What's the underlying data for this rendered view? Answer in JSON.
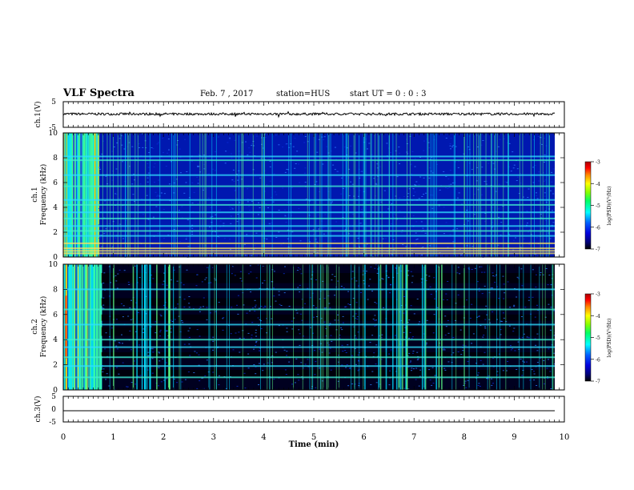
{
  "header": {
    "title": "VLF Spectra",
    "date": "Feb. 7 , 2017",
    "station": "station=HUS",
    "start_ut": "start UT =  0 : 0  : 3"
  },
  "colors": {
    "spectrogram_scale": [
      "#000000",
      "#00007a",
      "#0000dd",
      "#0060ff",
      "#00ffff",
      "#00ff66",
      "#88ff00",
      "#ffff00",
      "#ff8800",
      "#ff0000",
      "#aa0000"
    ]
  },
  "chart_data": [
    {
      "type": "line",
      "panel": "ch1 waveform",
      "ylabel": "ch.1(V)",
      "ylim": [
        -5,
        5
      ],
      "yticks": [
        "5",
        "-5"
      ],
      "xlim": [
        0,
        10
      ],
      "series": [
        {
          "description_value": "noisy trace near 0",
          "level": 0.2
        }
      ]
    },
    {
      "type": "heatmap",
      "panel": "ch1 spectrogram",
      "ylabel": "ch.1\nFrequency (kHz)",
      "ylim": [
        0,
        10
      ],
      "yticks": [
        "10",
        "8",
        "6",
        "4",
        "2",
        "0"
      ],
      "xlim": [
        0,
        10
      ],
      "colorbar": {
        "label": "log(PSD)(V²/Hz)",
        "range": [
          -7,
          -3
        ],
        "ticks": [
          "-3",
          "-4",
          "-5",
          "-6",
          "-7"
        ]
      },
      "horizontal_lines_khz": [
        8.1,
        7.8,
        6.6,
        5.7,
        4.6,
        4.2,
        3.6,
        3.1,
        2.5,
        2.1,
        1.7,
        1.1,
        0.7,
        0.5,
        0.3
      ],
      "broadband_until_min": 0.7
    },
    {
      "type": "heatmap",
      "panel": "ch2 spectrogram",
      "ylabel": "ch.2\nFrequency (kHz)",
      "ylim": [
        0,
        10
      ],
      "yticks": [
        "10",
        "8",
        "6",
        "4",
        "2",
        "0"
      ],
      "xlim": [
        0,
        10
      ],
      "colorbar": {
        "label": "log(PSD)(V²/Hz)",
        "range": [
          -7,
          -3
        ],
        "ticks": [
          "-3",
          "-4",
          "-5",
          "-6",
          "-7"
        ]
      },
      "horizontal_lines_khz": [
        8.0,
        6.4,
        5.2,
        4.0,
        3.4,
        2.6,
        1.9,
        1.0
      ],
      "broadband_until_min": 0.75
    },
    {
      "type": "line",
      "panel": "ch3 waveform",
      "ylabel": "ch.3(V)",
      "ylim": [
        -5,
        5
      ],
      "yticks": [
        "5",
        "0",
        "-5"
      ],
      "xlim": [
        0,
        10
      ],
      "xlabel": "Time (min)",
      "xticks": [
        "0",
        "1",
        "2",
        "3",
        "4",
        "5",
        "6",
        "7",
        "8",
        "9",
        "10"
      ],
      "series": [
        {
          "level": 0.0
        }
      ]
    }
  ]
}
